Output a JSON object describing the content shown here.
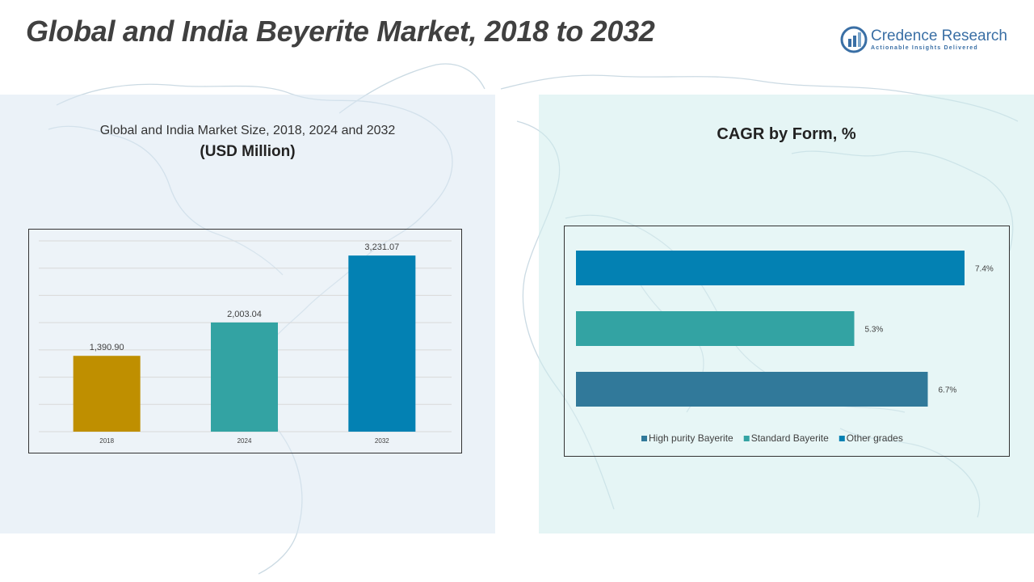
{
  "page": {
    "title": "Global and India Beyerite Market, 2018 to 2032"
  },
  "logo": {
    "name": "Credence Research",
    "tagline": "Actionable Insights Delivered",
    "icon": "credence-logo-icon",
    "color": "#3a6fa5"
  },
  "left_panel": {
    "title": "Global and India Market Size, 2018, 2024 and 2032",
    "subtitle": "(USD Million)"
  },
  "right_panel": {
    "title": "CAGR by Form, %"
  },
  "chart_data": [
    {
      "type": "bar",
      "title": "Global and India Market Size, 2018, 2024 and 2032",
      "ylabel": "USD Million",
      "categories": [
        "2018",
        "2024",
        "2032"
      ],
      "values": [
        1390.9,
        2003.04,
        3231.07
      ],
      "labels": [
        "1,390.90",
        "2,003.04",
        "3,231.07"
      ],
      "colors": [
        "#bf8f00",
        "#33a3a3",
        "#0381b3"
      ],
      "ylim": [
        0,
        3500
      ],
      "grid": true
    },
    {
      "type": "bar",
      "orientation": "horizontal",
      "title": "CAGR by Form, %",
      "series": [
        {
          "name": "High purity Bayerite",
          "value": 6.7,
          "label": "6.7%",
          "color": "#31799a"
        },
        {
          "name": "Standard Bayerite",
          "value": 5.3,
          "label": "5.3%",
          "color": "#33a3a3"
        },
        {
          "name": "Other grades",
          "value": 7.4,
          "label": "7.4%",
          "color": "#0381b3"
        }
      ],
      "xlim": [
        0,
        7.4
      ],
      "legend": "bottom"
    }
  ]
}
